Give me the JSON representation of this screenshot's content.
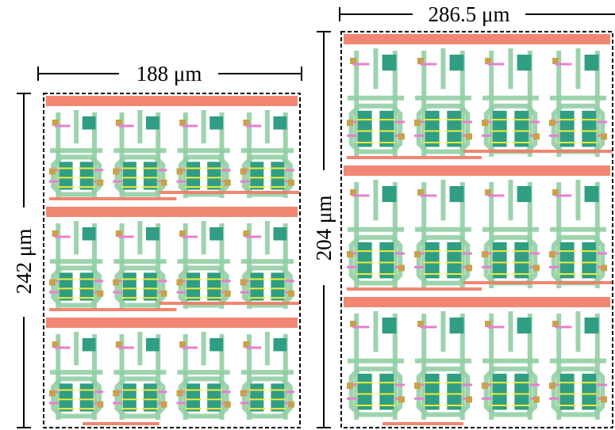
{
  "left_layout": {
    "width_label": "188 μm",
    "height_label": "242 μm"
  },
  "right_layout": {
    "width_label": "286.5 μm",
    "height_label": "204 μm"
  }
}
